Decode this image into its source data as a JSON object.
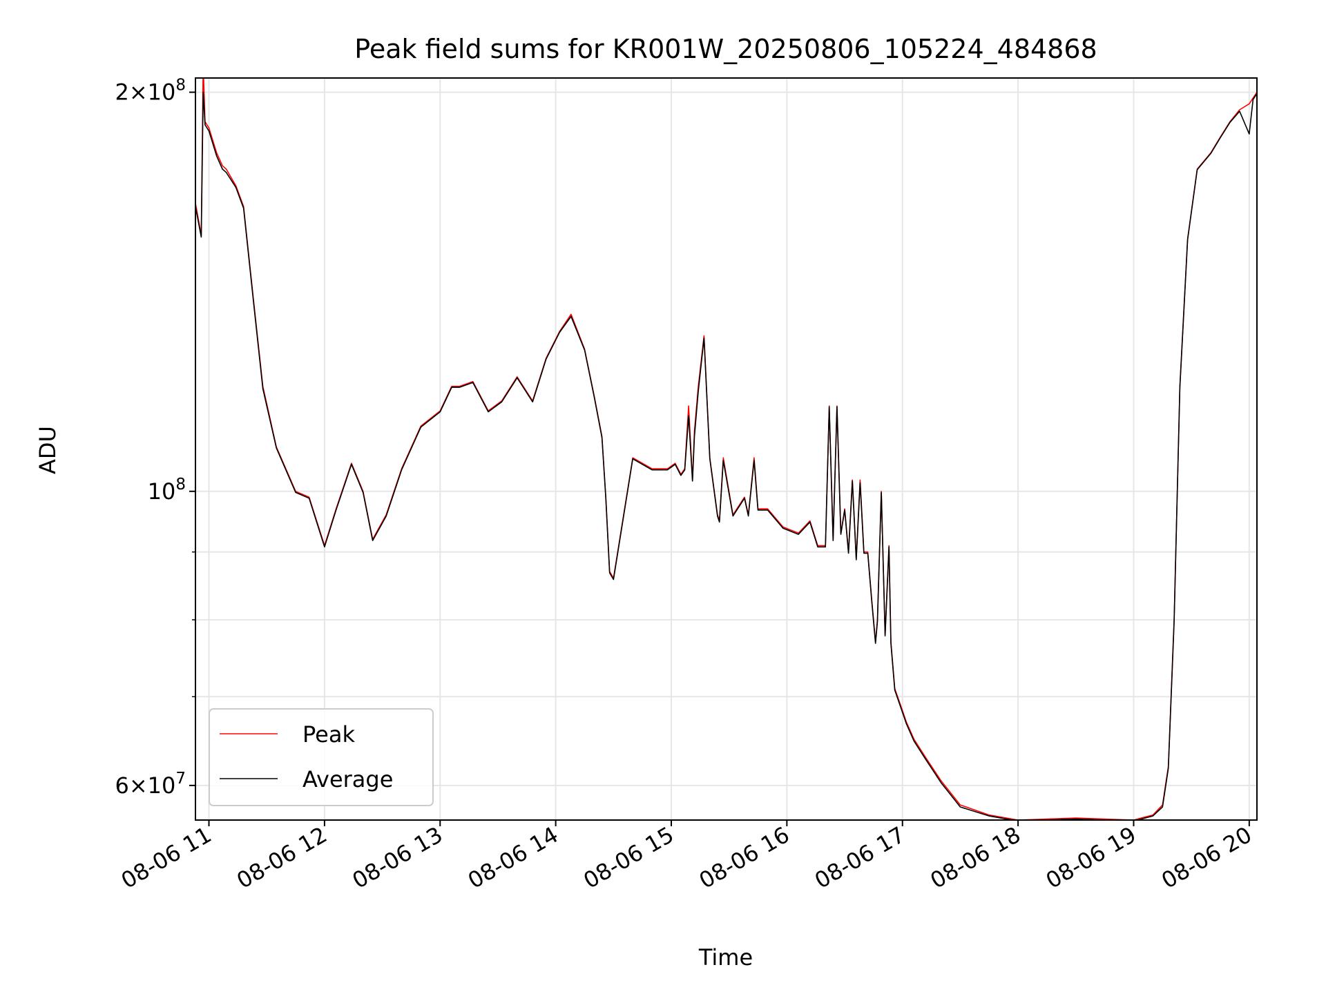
{
  "chart_data": {
    "type": "line",
    "title": "Peak field sums for KR001W_20250806_105224_484868",
    "xlabel": "Time",
    "ylabel": "ADU",
    "y_scale": "log",
    "xlim": [
      "2025-08-06 10:53",
      "2025-08-06 20:04"
    ],
    "ylim": [
      56500000,
      205000000
    ],
    "x_ticks": [
      "08-06 11",
      "08-06 12",
      "08-06 13",
      "08-06 14",
      "08-06 15",
      "08-06 16",
      "08-06 17",
      "08-06 18",
      "08-06 19",
      "08-06 20"
    ],
    "y_major_ticks": [
      {
        "value": 60000000,
        "mantissa": "6",
        "base": "10",
        "exp": "7"
      },
      {
        "value": 100000000,
        "mantissa": "",
        "base": "10",
        "exp": "8"
      },
      {
        "value": 200000000,
        "mantissa": "2",
        "base": "10",
        "exp": "8"
      }
    ],
    "y_minor_ticks": [
      70000000,
      80000000,
      90000000
    ],
    "grid": true,
    "legend_position": "lower-left",
    "colors": {
      "peak": "#ff0000",
      "average": "#000000",
      "grid": "#e6e6e6"
    },
    "series": [
      {
        "name": "Peak",
        "color": "#ff0000",
        "x": [
          "2025-08-06 10:53",
          "2025-08-06 10:56",
          "2025-08-06 10:57",
          "2025-08-06 10:58",
          "2025-08-06 11:00",
          "2025-08-06 11:04",
          "2025-08-06 11:07",
          "2025-08-06 11:09",
          "2025-08-06 11:14",
          "2025-08-06 11:18",
          "2025-08-06 11:23",
          "2025-08-06 11:28",
          "2025-08-06 11:35",
          "2025-08-06 11:45",
          "2025-08-06 11:52",
          "2025-08-06 12:00",
          "2025-08-06 12:06",
          "2025-08-06 12:14",
          "2025-08-06 12:20",
          "2025-08-06 12:25",
          "2025-08-06 12:32",
          "2025-08-06 12:40",
          "2025-08-06 12:50",
          "2025-08-06 13:00",
          "2025-08-06 13:06",
          "2025-08-06 13:10",
          "2025-08-06 13:17",
          "2025-08-06 13:25",
          "2025-08-06 13:32",
          "2025-08-06 13:40",
          "2025-08-06 13:48",
          "2025-08-06 13:55",
          "2025-08-06 14:02",
          "2025-08-06 14:08",
          "2025-08-06 14:15",
          "2025-08-06 14:20",
          "2025-08-06 14:24",
          "2025-08-06 14:26",
          "2025-08-06 14:28",
          "2025-08-06 14:30",
          "2025-08-06 14:40",
          "2025-08-06 14:50",
          "2025-08-06 14:58",
          "2025-08-06 15:02",
          "2025-08-06 15:05",
          "2025-08-06 15:07",
          "2025-08-06 15:09",
          "2025-08-06 15:11",
          "2025-08-06 15:12",
          "2025-08-06 15:14",
          "2025-08-06 15:17",
          "2025-08-06 15:20",
          "2025-08-06 15:24",
          "2025-08-06 15:25",
          "2025-08-06 15:27",
          "2025-08-06 15:32",
          "2025-08-06 15:38",
          "2025-08-06 15:40",
          "2025-08-06 15:43",
          "2025-08-06 15:45",
          "2025-08-06 15:50",
          "2025-08-06 15:58",
          "2025-08-06 16:06",
          "2025-08-06 16:12",
          "2025-08-06 16:16",
          "2025-08-06 16:20",
          "2025-08-06 16:22",
          "2025-08-06 16:24",
          "2025-08-06 16:26",
          "2025-08-06 16:28",
          "2025-08-06 16:30",
          "2025-08-06 16:32",
          "2025-08-06 16:34",
          "2025-08-06 16:36",
          "2025-08-06 16:38",
          "2025-08-06 16:40",
          "2025-08-06 16:42",
          "2025-08-06 16:44",
          "2025-08-06 16:46",
          "2025-08-06 16:47",
          "2025-08-06 16:49",
          "2025-08-06 16:51",
          "2025-08-06 16:53",
          "2025-08-06 16:54",
          "2025-08-06 16:56",
          "2025-08-06 16:59",
          "2025-08-06 17:02",
          "2025-08-06 17:06",
          "2025-08-06 17:12",
          "2025-08-06 17:20",
          "2025-08-06 17:30",
          "2025-08-06 17:45",
          "2025-08-06 18:00",
          "2025-08-06 18:30",
          "2025-08-06 19:00",
          "2025-08-06 19:10",
          "2025-08-06 19:15",
          "2025-08-06 19:18",
          "2025-08-06 19:21",
          "2025-08-06 19:24",
          "2025-08-06 19:28",
          "2025-08-06 19:33",
          "2025-08-06 19:40",
          "2025-08-06 19:45",
          "2025-08-06 19:50",
          "2025-08-06 19:55",
          "2025-08-06 20:00",
          "2025-08-06 20:02",
          "2025-08-06 20:04"
        ],
        "values": [
          165000000,
          156000000,
          210000000,
          190000000,
          188000000,
          180000000,
          176000000,
          175000000,
          170000000,
          164000000,
          140000000,
          120000000,
          108000000,
          100000000,
          99000000,
          91000000,
          97000000,
          105000000,
          100000000,
          92000000,
          96000000,
          104000000,
          112000000,
          115000000,
          120000000,
          120000000,
          121000000,
          115000000,
          117000000,
          122000000,
          117000000,
          126000000,
          132000000,
          136000000,
          128000000,
          118000000,
          110000000,
          99000000,
          87000000,
          86000000,
          106000000,
          104000000,
          104000000,
          105000000,
          103000000,
          104000000,
          116000000,
          102000000,
          111000000,
          120000000,
          131000000,
          106000000,
          96000000,
          95000000,
          106000000,
          96000000,
          99000000,
          96000000,
          106000000,
          97000000,
          97000000,
          94000000,
          93000000,
          95000000,
          91000000,
          91000000,
          116000000,
          92000000,
          116000000,
          93000000,
          97000000,
          90000000,
          102000000,
          89000000,
          102000000,
          90000000,
          90000000,
          83000000,
          77000000,
          80000000,
          100000000,
          78000000,
          91000000,
          77000000,
          71000000,
          69000000,
          67000000,
          65000000,
          63000000,
          60500000,
          58000000,
          57000000,
          56500000,
          56700000,
          56500000,
          57000000,
          58000000,
          62000000,
          80000000,
          120000000,
          155000000,
          175000000,
          180000000,
          185000000,
          190000000,
          194000000,
          196000000,
          198000000,
          200000000
        ]
      },
      {
        "name": "Average",
        "color": "#000000",
        "x": [
          "2025-08-06 10:53",
          "2025-08-06 10:56",
          "2025-08-06 10:57",
          "2025-08-06 10:58",
          "2025-08-06 11:00",
          "2025-08-06 11:04",
          "2025-08-06 11:07",
          "2025-08-06 11:09",
          "2025-08-06 11:14",
          "2025-08-06 11:18",
          "2025-08-06 11:23",
          "2025-08-06 11:28",
          "2025-08-06 11:35",
          "2025-08-06 11:45",
          "2025-08-06 11:52",
          "2025-08-06 12:00",
          "2025-08-06 12:06",
          "2025-08-06 12:14",
          "2025-08-06 12:20",
          "2025-08-06 12:25",
          "2025-08-06 12:32",
          "2025-08-06 12:40",
          "2025-08-06 12:50",
          "2025-08-06 13:00",
          "2025-08-06 13:06",
          "2025-08-06 13:10",
          "2025-08-06 13:17",
          "2025-08-06 13:25",
          "2025-08-06 13:32",
          "2025-08-06 13:40",
          "2025-08-06 13:48",
          "2025-08-06 13:55",
          "2025-08-06 14:02",
          "2025-08-06 14:08",
          "2025-08-06 14:15",
          "2025-08-06 14:20",
          "2025-08-06 14:24",
          "2025-08-06 14:26",
          "2025-08-06 14:28",
          "2025-08-06 14:30",
          "2025-08-06 14:40",
          "2025-08-06 14:50",
          "2025-08-06 14:58",
          "2025-08-06 15:02",
          "2025-08-06 15:05",
          "2025-08-06 15:07",
          "2025-08-06 15:09",
          "2025-08-06 15:11",
          "2025-08-06 15:12",
          "2025-08-06 15:14",
          "2025-08-06 15:17",
          "2025-08-06 15:20",
          "2025-08-06 15:24",
          "2025-08-06 15:25",
          "2025-08-06 15:27",
          "2025-08-06 15:32",
          "2025-08-06 15:38",
          "2025-08-06 15:40",
          "2025-08-06 15:43",
          "2025-08-06 15:45",
          "2025-08-06 15:50",
          "2025-08-06 15:58",
          "2025-08-06 16:06",
          "2025-08-06 16:12",
          "2025-08-06 16:16",
          "2025-08-06 16:20",
          "2025-08-06 16:22",
          "2025-08-06 16:24",
          "2025-08-06 16:26",
          "2025-08-06 16:28",
          "2025-08-06 16:30",
          "2025-08-06 16:32",
          "2025-08-06 16:34",
          "2025-08-06 16:36",
          "2025-08-06 16:38",
          "2025-08-06 16:40",
          "2025-08-06 16:42",
          "2025-08-06 16:44",
          "2025-08-06 16:46",
          "2025-08-06 16:47",
          "2025-08-06 16:49",
          "2025-08-06 16:51",
          "2025-08-06 16:53",
          "2025-08-06 16:54",
          "2025-08-06 16:56",
          "2025-08-06 16:59",
          "2025-08-06 17:02",
          "2025-08-06 17:06",
          "2025-08-06 17:12",
          "2025-08-06 17:20",
          "2025-08-06 17:30",
          "2025-08-06 17:45",
          "2025-08-06 18:00",
          "2025-08-06 18:30",
          "2025-08-06 19:00",
          "2025-08-06 19:10",
          "2025-08-06 19:15",
          "2025-08-06 19:18",
          "2025-08-06 19:21",
          "2025-08-06 19:24",
          "2025-08-06 19:28",
          "2025-08-06 19:33",
          "2025-08-06 19:40",
          "2025-08-06 19:45",
          "2025-08-06 19:50",
          "2025-08-06 19:55",
          "2025-08-06 20:00",
          "2025-08-06 20:02",
          "2025-08-06 20:04"
        ],
        "values": [
          164000000,
          155500000,
          200000000,
          189000000,
          187000000,
          179000000,
          175000000,
          174000000,
          169500000,
          163500000,
          139500000,
          119500000,
          107800000,
          99800000,
          98800000,
          90800000,
          96800000,
          104800000,
          99800000,
          91800000,
          95800000,
          103800000,
          111800000,
          114800000,
          119800000,
          119800000,
          120800000,
          114800000,
          116800000,
          121800000,
          116800000,
          125800000,
          131800000,
          135500000,
          127800000,
          117800000,
          109800000,
          98800000,
          86800000,
          85800000,
          105800000,
          103800000,
          103800000,
          104800000,
          102800000,
          103800000,
          114000000,
          101800000,
          110000000,
          119000000,
          130500000,
          105800000,
          95800000,
          94800000,
          105500000,
          95800000,
          98800000,
          95800000,
          105500000,
          96800000,
          96800000,
          93800000,
          92800000,
          94800000,
          90800000,
          90800000,
          115800000,
          91800000,
          115800000,
          92800000,
          96800000,
          89800000,
          101800000,
          88800000,
          101500000,
          89800000,
          89800000,
          82800000,
          76800000,
          79800000,
          99800000,
          77800000,
          90800000,
          76800000,
          70800000,
          68800000,
          66800000,
          64800000,
          62800000,
          60300000,
          57800000,
          56900000,
          56400000,
          56600000,
          56400000,
          56900000,
          57800000,
          61800000,
          79800000,
          119800000,
          154800000,
          174800000,
          179800000,
          184800000,
          189800000,
          193500000,
          186000000,
          197500000,
          199500000
        ]
      }
    ]
  }
}
